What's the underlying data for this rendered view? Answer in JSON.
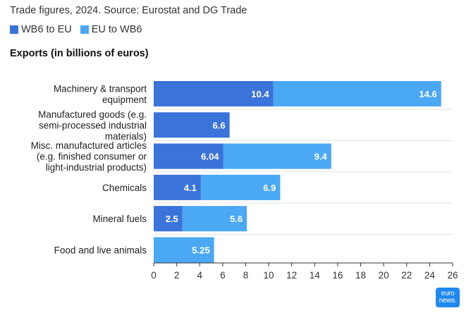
{
  "header": {
    "subtitle": "Trade figures, 2024. Source: Eurostat and DG Trade"
  },
  "colors": {
    "wb6_to_eu": "#3a73d9",
    "eu_to_wb6": "#4aa8f5",
    "grid": "#e3e3e3",
    "axis": "#333333",
    "logo_bg": "#1e88f0"
  },
  "logo": {
    "line1": "euro",
    "line2": "news."
  },
  "chart_data": {
    "type": "bar",
    "orientation": "horizontal",
    "stacked": true,
    "title": "Exports (in billions of euros)",
    "categories": [
      [
        "Machinery & transport",
        "equipment"
      ],
      [
        "Manufactured goods (e.g.",
        "semi-processed industrial",
        "materials)"
      ],
      [
        "Misc. manufactured articles",
        "(e.g. finished consumer or",
        "light-industrial products)"
      ],
      [
        "Chemicals"
      ],
      [
        "Mineral fuels"
      ],
      [
        "Food and live animals"
      ]
    ],
    "series": [
      {
        "name": "WB6 to EU",
        "values": [
          10.4,
          6.6,
          6.04,
          4.1,
          2.5,
          null
        ]
      },
      {
        "name": "EU to WB6",
        "values": [
          14.6,
          null,
          9.4,
          6.9,
          5.6,
          5.25
        ]
      }
    ],
    "xlim": [
      0,
      26
    ],
    "xticks": [
      0,
      2,
      4,
      6,
      8,
      10,
      12,
      14,
      16,
      18,
      20,
      22,
      24,
      26
    ],
    "xlabel": "",
    "ylabel": "",
    "legend_position": "top-left"
  }
}
